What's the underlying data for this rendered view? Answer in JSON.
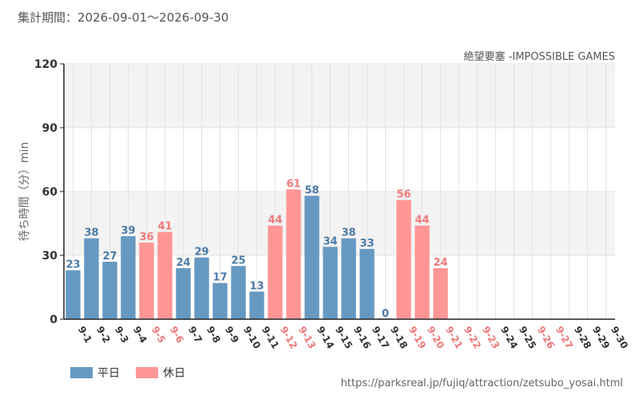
{
  "header": {
    "period": "集計期間：2026-09-01～2026-09-30"
  },
  "chart_data": {
    "type": "bar",
    "subtitle": "絶望要塞 -IMPOSSIBLE GAMES",
    "ylabel": "待ち時間（分）min",
    "ylim": [
      0,
      120
    ],
    "yticks": [
      0,
      30,
      60,
      90,
      120
    ],
    "grid": true,
    "legend_position": "bottom-left",
    "categories": [
      "9-1",
      "9-2",
      "9-3",
      "9-4",
      "9-5",
      "9-6",
      "9-7",
      "9-8",
      "9-9",
      "9-10",
      "9-11",
      "9-12",
      "9-13",
      "9-14",
      "9-15",
      "9-16",
      "9-17",
      "9-18",
      "9-19",
      "9-20",
      "9-21",
      "9-22",
      "9-23",
      "9-24",
      "9-25",
      "9-26",
      "9-27",
      "9-28",
      "9-29",
      "9-30"
    ],
    "values": [
      23,
      38,
      27,
      39,
      36,
      41,
      24,
      29,
      17,
      25,
      13,
      44,
      61,
      58,
      34,
      38,
      33,
      0,
      56,
      44,
      24,
      null,
      null,
      null,
      null,
      null,
      null,
      null,
      null,
      null
    ],
    "day_type": [
      "weekday",
      "weekday",
      "weekday",
      "weekday",
      "holiday",
      "holiday",
      "weekday",
      "weekday",
      "weekday",
      "weekday",
      "weekday",
      "holiday",
      "holiday",
      "weekday",
      "weekday",
      "weekday",
      "weekday",
      "weekday",
      "holiday",
      "holiday",
      "holiday",
      "holiday",
      "holiday",
      "weekday",
      "weekday",
      "holiday",
      "holiday",
      "weekday",
      "weekday",
      "weekday"
    ],
    "legend": [
      {
        "key": "weekday",
        "label": "平日",
        "color": "#6699c2"
      },
      {
        "key": "holiday",
        "label": "休日",
        "color": "#ff9696"
      }
    ],
    "colors": {
      "weekday_bar": "#6699c2",
      "holiday_bar": "#ff9696",
      "weekday_text": "#4a7aa8",
      "holiday_text": "#f07878",
      "band": "#f3f3f3",
      "grid": "#e3e3e3",
      "axis": "#222222"
    }
  },
  "footer": {
    "source": "https://parksreal.jp/fujiq/attraction/zetsubo_yosai.html"
  }
}
